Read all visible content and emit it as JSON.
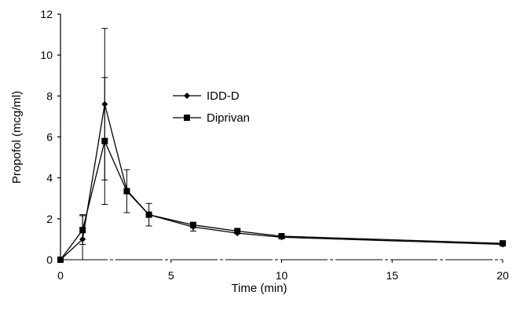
{
  "chart_data": {
    "type": "line",
    "xlabel": "Time (min)",
    "ylabel": "Propofol (mcg/ml)",
    "xlim": [
      0,
      20
    ],
    "ylim": [
      0,
      12
    ],
    "x_ticks": [
      0,
      5,
      10,
      15,
      20
    ],
    "y_ticks": [
      0,
      2,
      4,
      6,
      8,
      10,
      12
    ],
    "grid": false,
    "legend_position": "center-left",
    "series": [
      {
        "name": "IDD-D",
        "marker": "diamond",
        "color": "#000000",
        "x": [
          0,
          1,
          2,
          3,
          4,
          6,
          8,
          10,
          20
        ],
        "y": [
          0,
          1.0,
          7.6,
          3.4,
          2.2,
          1.6,
          1.3,
          1.1,
          0.75
        ],
        "error": [
          null,
          1.2,
          3.7,
          null,
          0.55,
          0.2,
          null,
          null,
          null
        ]
      },
      {
        "name": "Diprivan",
        "marker": "square",
        "color": "#000000",
        "x": [
          0,
          1,
          2,
          3,
          4,
          6,
          8,
          10,
          20
        ],
        "y": [
          0,
          1.45,
          5.8,
          3.35,
          2.2,
          1.7,
          1.4,
          1.15,
          0.8
        ],
        "error": [
          null,
          0.7,
          3.1,
          1.05,
          null,
          null,
          null,
          null,
          null
        ]
      }
    ]
  }
}
